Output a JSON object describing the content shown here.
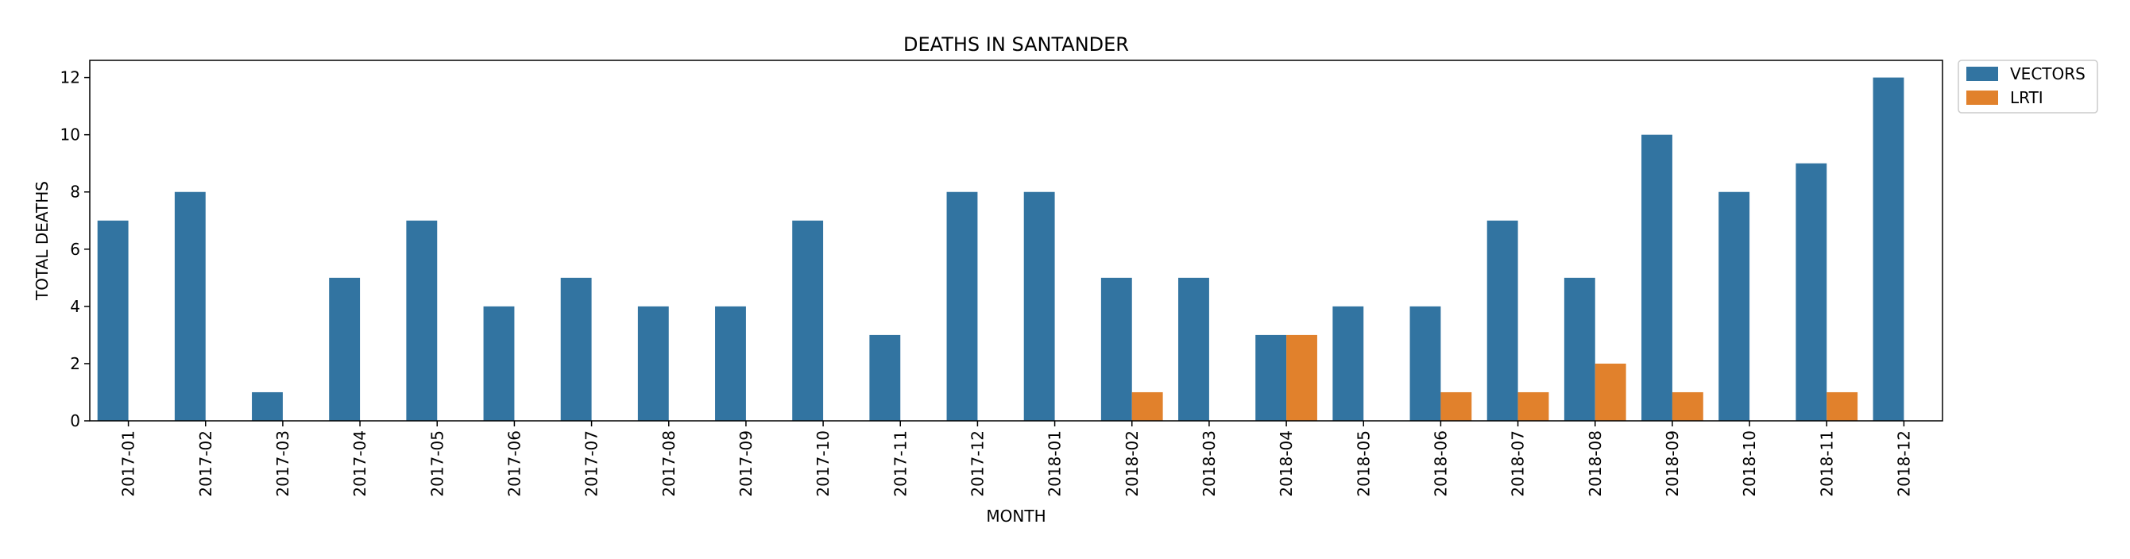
{
  "chart_data": {
    "type": "bar",
    "title": "DEATHS IN SANTANDER",
    "xlabel": "MONTH",
    "ylabel": "TOTAL DEATHS",
    "ylim": [
      0,
      12.6
    ],
    "yticks": [
      0,
      2,
      4,
      6,
      8,
      10,
      12
    ],
    "categories": [
      "2017-01",
      "2017-02",
      "2017-03",
      "2017-04",
      "2017-05",
      "2017-06",
      "2017-07",
      "2017-08",
      "2017-09",
      "2017-10",
      "2017-11",
      "2017-12",
      "2018-01",
      "2018-02",
      "2018-03",
      "2018-04",
      "2018-05",
      "2018-06",
      "2018-07",
      "2018-08",
      "2018-09",
      "2018-10",
      "2018-11",
      "2018-12"
    ],
    "series": [
      {
        "name": "VECTORS",
        "color": "#3274a1",
        "values": [
          7,
          8,
          1,
          5,
          7,
          4,
          5,
          4,
          4,
          7,
          3,
          8,
          8,
          5,
          5,
          3,
          4,
          4,
          7,
          5,
          10,
          8,
          9,
          12
        ]
      },
      {
        "name": "LRTI",
        "color": "#e1812c",
        "values": [
          0,
          0,
          0,
          0,
          0,
          0,
          0,
          0,
          0,
          0,
          0,
          0,
          0,
          1,
          0,
          3,
          0,
          1,
          1,
          2,
          1,
          0,
          1,
          0
        ]
      }
    ],
    "grid": false,
    "legend": "outside-top-right"
  }
}
